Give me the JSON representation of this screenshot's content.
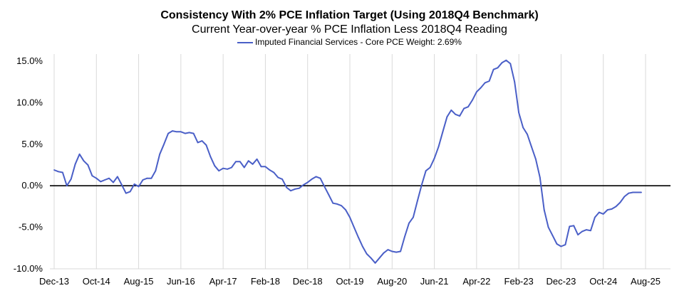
{
  "chart_data": {
    "type": "line",
    "title": "Consistency With 2% PCE Inflation Target (Using 2018Q4 Benchmark)",
    "subtitle": "Current Year-over-year % PCE Inflation Less 2018Q4 Reading",
    "xlabel": "",
    "ylabel": "",
    "x_tick_labels": [
      "Dec-13",
      "Oct-14",
      "Aug-15",
      "Jun-16",
      "Apr-17",
      "Feb-18",
      "Dec-18",
      "Oct-19",
      "Aug-20",
      "Jun-21",
      "Apr-22",
      "Feb-23",
      "Dec-23",
      "Oct-24",
      "Aug-25"
    ],
    "y_tick_labels": [
      "15.0%",
      "10.0%",
      "5.0%",
      "0.0%",
      "-5.0%",
      "-10.0%"
    ],
    "ylim": [
      -10,
      15
    ],
    "x_index_range": [
      0,
      140
    ],
    "grid": "vertical",
    "legend_position": "top",
    "series": [
      {
        "name": "Imputed Financial Services - Core PCE Weight: 2.69%",
        "color": "#4a5fc7",
        "points": [
          [
            0,
            1.9
          ],
          [
            1,
            1.7
          ],
          [
            2,
            1.6
          ],
          [
            3,
            0.0
          ],
          [
            4,
            0.8
          ],
          [
            5,
            2.6
          ],
          [
            6,
            3.8
          ],
          [
            7,
            3.0
          ],
          [
            8,
            2.5
          ],
          [
            9,
            1.2
          ],
          [
            10,
            0.9
          ],
          [
            11,
            0.5
          ],
          [
            12,
            0.7
          ],
          [
            13,
            0.9
          ],
          [
            14,
            0.4
          ],
          [
            15,
            1.1
          ],
          [
            16,
            0.1
          ],
          [
            17,
            -0.9
          ],
          [
            18,
            -0.7
          ],
          [
            19,
            0.2
          ],
          [
            20,
            -0.1
          ],
          [
            21,
            0.7
          ],
          [
            22,
            0.9
          ],
          [
            23,
            0.9
          ],
          [
            24,
            1.8
          ],
          [
            25,
            3.8
          ],
          [
            26,
            5.0
          ],
          [
            27,
            6.3
          ],
          [
            28,
            6.6
          ],
          [
            29,
            6.5
          ],
          [
            30,
            6.5
          ],
          [
            31,
            6.3
          ],
          [
            32,
            6.4
          ],
          [
            33,
            6.3
          ],
          [
            34,
            5.2
          ],
          [
            35,
            5.4
          ],
          [
            36,
            4.9
          ],
          [
            37,
            3.5
          ],
          [
            38,
            2.4
          ],
          [
            39,
            1.8
          ],
          [
            40,
            2.1
          ],
          [
            41,
            2.0
          ],
          [
            42,
            2.2
          ],
          [
            43,
            2.9
          ],
          [
            44,
            2.9
          ],
          [
            45,
            2.2
          ],
          [
            46,
            3.0
          ],
          [
            47,
            2.6
          ],
          [
            48,
            3.2
          ],
          [
            49,
            2.3
          ],
          [
            50,
            2.3
          ],
          [
            51,
            1.9
          ],
          [
            52,
            1.6
          ],
          [
            53,
            1.0
          ],
          [
            54,
            0.8
          ],
          [
            55,
            -0.2
          ],
          [
            56,
            -0.6
          ],
          [
            57,
            -0.4
          ],
          [
            58,
            -0.3
          ],
          [
            59,
            0.1
          ],
          [
            60,
            0.4
          ],
          [
            61,
            0.8
          ],
          [
            62,
            1.1
          ],
          [
            63,
            0.9
          ],
          [
            64,
            -0.1
          ],
          [
            65,
            -1.1
          ],
          [
            66,
            -2.1
          ],
          [
            67,
            -2.2
          ],
          [
            68,
            -2.4
          ],
          [
            69,
            -2.9
          ],
          [
            70,
            -3.8
          ],
          [
            71,
            -5.0
          ],
          [
            72,
            -6.2
          ],
          [
            73,
            -7.3
          ],
          [
            74,
            -8.2
          ],
          [
            75,
            -8.7
          ],
          [
            76,
            -9.3
          ],
          [
            77,
            -8.7
          ],
          [
            78,
            -8.1
          ],
          [
            79,
            -7.7
          ],
          [
            80,
            -7.9
          ],
          [
            81,
            -8.0
          ],
          [
            82,
            -7.9
          ],
          [
            83,
            -6.1
          ],
          [
            84,
            -4.5
          ],
          [
            85,
            -3.8
          ],
          [
            86,
            -1.8
          ],
          [
            87,
            0.1
          ],
          [
            88,
            1.8
          ],
          [
            89,
            2.2
          ],
          [
            90,
            3.3
          ],
          [
            91,
            4.7
          ],
          [
            92,
            6.5
          ],
          [
            93,
            8.3
          ],
          [
            94,
            9.1
          ],
          [
            95,
            8.6
          ],
          [
            96,
            8.4
          ],
          [
            97,
            9.3
          ],
          [
            98,
            9.5
          ],
          [
            99,
            10.3
          ],
          [
            100,
            11.3
          ],
          [
            101,
            11.8
          ],
          [
            102,
            12.4
          ],
          [
            103,
            12.6
          ],
          [
            104,
            14.0
          ],
          [
            105,
            14.2
          ],
          [
            106,
            14.8
          ],
          [
            107,
            15.1
          ],
          [
            108,
            14.7
          ],
          [
            109,
            12.5
          ],
          [
            110,
            8.8
          ],
          [
            111,
            7.0
          ],
          [
            112,
            6.2
          ],
          [
            113,
            4.7
          ],
          [
            114,
            3.2
          ],
          [
            115,
            1.0
          ],
          [
            116,
            -2.9
          ],
          [
            117,
            -5.0
          ],
          [
            118,
            -6.0
          ],
          [
            119,
            -7.0
          ],
          [
            120,
            -7.3
          ],
          [
            121,
            -7.1
          ],
          [
            122,
            -4.9
          ],
          [
            123,
            -4.8
          ],
          [
            124,
            -5.9
          ],
          [
            125,
            -5.5
          ],
          [
            126,
            -5.3
          ],
          [
            127,
            -5.4
          ],
          [
            128,
            -3.8
          ],
          [
            129,
            -3.2
          ],
          [
            130,
            -3.4
          ],
          [
            131,
            -2.9
          ],
          [
            132,
            -2.8
          ],
          [
            133,
            -2.5
          ],
          [
            134,
            -2.0
          ],
          [
            135,
            -1.3
          ],
          [
            136,
            -0.9
          ],
          [
            137,
            -0.8
          ],
          [
            138,
            -0.8
          ],
          [
            139,
            -0.8
          ]
        ]
      }
    ]
  }
}
